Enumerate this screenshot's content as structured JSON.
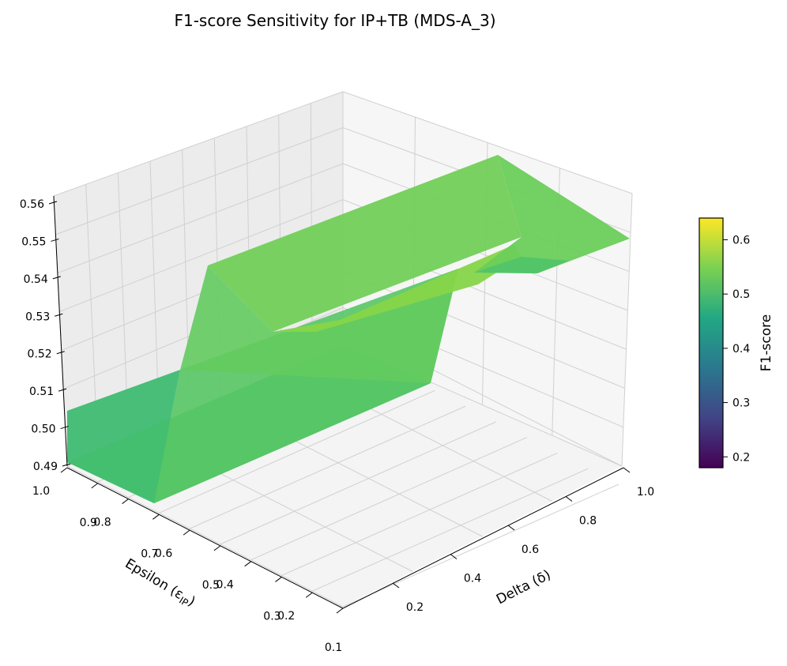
{
  "chart_data": {
    "type": "surface3d",
    "title": "F1-score Sensitivity for IP+TB (MDS-A_3)",
    "x_axis": {
      "label": "Delta (δ)",
      "range": [
        0.1,
        1.0
      ],
      "ticks": [
        "0.2",
        "0.4",
        "0.6",
        "0.8",
        "1.0"
      ]
    },
    "y_axis": {
      "label": "Epsilon (ε",
      "label_sub": "IP",
      "label_close": ")",
      "range": [
        0.1,
        1.0
      ],
      "ticks": [
        "1.0",
        "0.9",
        "0.8",
        "0.7",
        "0.6",
        "0.5",
        "0.4",
        "0.3",
        "0.2",
        "0.1"
      ]
    },
    "z_axis": {
      "range": [
        0.49,
        0.56
      ],
      "ticks": [
        "0.56",
        "0.55",
        "0.54",
        "0.53",
        "0.52",
        "0.51",
        "0.50",
        "0.49"
      ]
    },
    "colorbar": {
      "label": "F1-score",
      "colormap": "viridis",
      "range": [
        0.18,
        0.64
      ],
      "ticks": [
        "0.6",
        "0.5",
        "0.4",
        "0.3",
        "0.2"
      ]
    },
    "surface_levels": [
      {
        "epsilon_range": [
          0.8,
          1.0
        ],
        "f1": 0.492,
        "color": "#3fbc73"
      },
      {
        "epsilon_range": [
          0.1,
          0.8
        ],
        "f1": 0.519,
        "color": "#44bf70"
      },
      {
        "epsilon_range": [
          0.1,
          0.8
        ],
        "f1": 0.544,
        "color": "#6fce5a"
      },
      {
        "epsilon_range": [
          0.1,
          0.5
        ],
        "f1": 0.546,
        "color": "#86d549"
      }
    ],
    "grid": true,
    "colors": {
      "pane": "#f2f2f2",
      "grid": "#d0d0d0"
    }
  }
}
